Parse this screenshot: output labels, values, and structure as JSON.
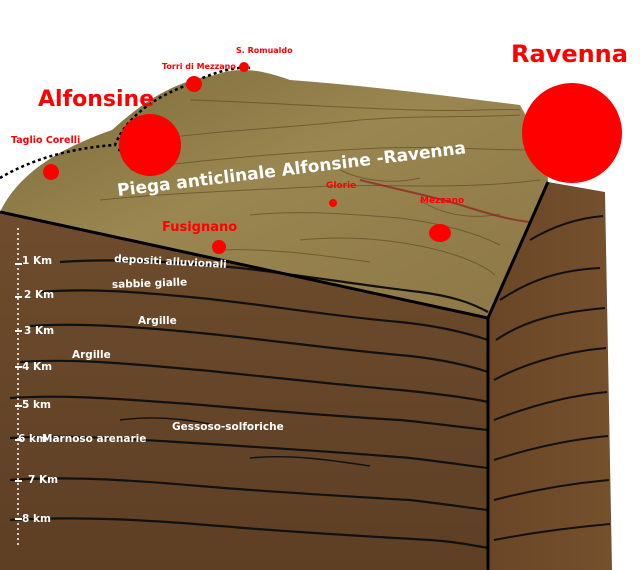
{
  "towns": {
    "ravenna": "Ravenna",
    "alfonsine": "Alfonsine",
    "fusignano": "Fusignano",
    "taglio_corelli": "Taglio Corelli",
    "torri_di_mezzano": "Torri di Mezzano",
    "s_romualdo": "S. Romualdo",
    "glorie": "Glorie",
    "mezzano": "Mezzano"
  },
  "structure_label": "Piega anticlinale Alfonsine -Ravenna",
  "layers": {
    "depositi_alluvionali": "depositi alluvionali",
    "sabbie_gialle": "sabbie gialle",
    "argille_1": "Argille",
    "argille_2": "Argille",
    "gessoso_solforiche": "Gessoso-solforiche",
    "marnoso_arenarie": "Marnoso arenarie"
  },
  "depth_scale": [
    "1 Km",
    "2 Km",
    "3 Km",
    "4 Km",
    "5 km",
    "6 km",
    "7 Km",
    "8 km"
  ],
  "colors": {
    "town_marker": "#ff0000",
    "surface": "#8a7440",
    "rock": "#6b4a2c",
    "rock_light": "#7d5834",
    "strata_line": "#111111",
    "label_white": "#ffffff"
  }
}
